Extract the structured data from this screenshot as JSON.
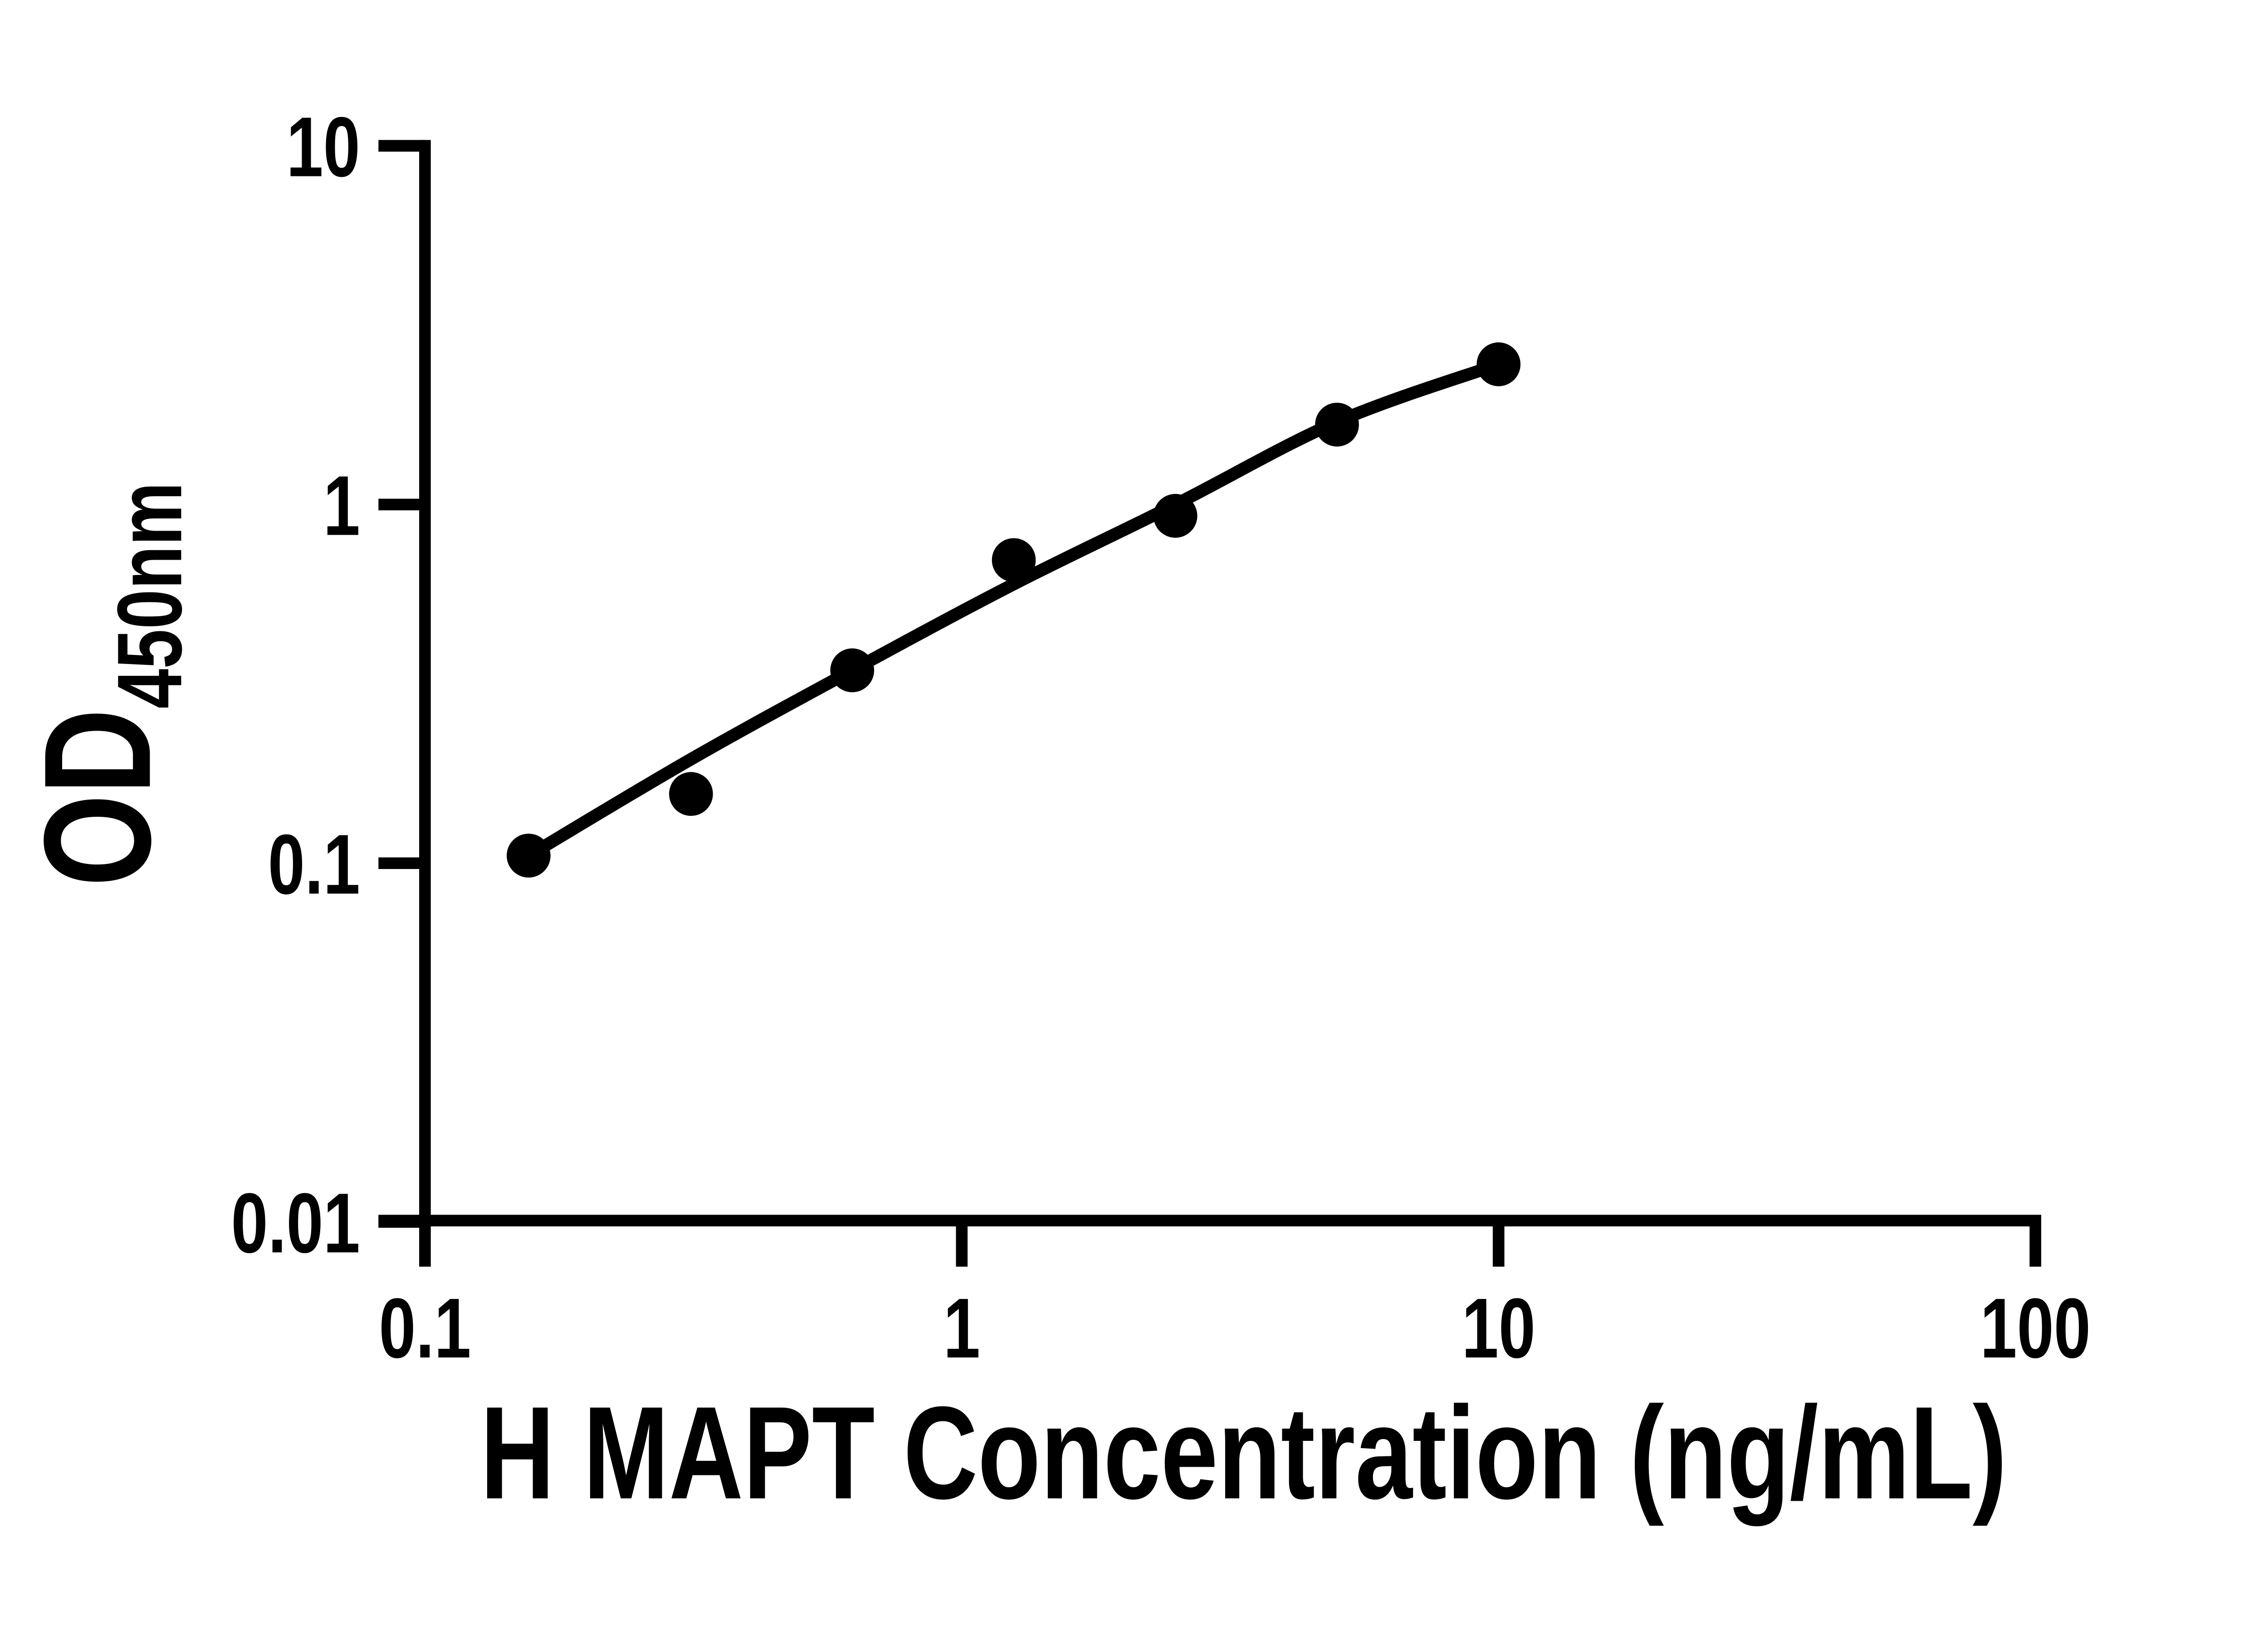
{
  "figure": {
    "background_color": "#ffffff",
    "ink_color": "#000000"
  },
  "chart_data": {
    "type": "scatter",
    "title": "",
    "xlabel": "H MAPT Concentration (ng/mL)",
    "ylabel_main": "OD",
    "ylabel_sub": "450nm",
    "x_scale": "log",
    "y_scale": "log",
    "xlim": [
      0.1,
      100
    ],
    "ylim": [
      0.01,
      10
    ],
    "grid": "off",
    "legend": "none",
    "x_ticks": [
      {
        "value": 0.1,
        "label": "0.1"
      },
      {
        "value": 1,
        "label": "1"
      },
      {
        "value": 10,
        "label": "10"
      },
      {
        "value": 100,
        "label": "100"
      }
    ],
    "y_ticks": [
      {
        "value": 10,
        "label": "10"
      },
      {
        "value": 1,
        "label": "1"
      },
      {
        "value": 0.1,
        "label": "0.1"
      },
      {
        "value": 0.01,
        "label": "0.01"
      }
    ],
    "series": [
      {
        "name": "standard-curve-points",
        "marker": "filled-circle",
        "color": "#000000",
        "points": [
          [
            0.156,
            0.105
          ],
          [
            0.313,
            0.156
          ],
          [
            0.625,
            0.345
          ],
          [
            1.25,
            0.7
          ],
          [
            2.5,
            0.93
          ],
          [
            5,
            1.67
          ],
          [
            10,
            2.46
          ]
        ]
      }
    ],
    "fit_curve": {
      "name": "four-parameter-logistic-fit",
      "color": "#000000",
      "points": [
        [
          0.156,
          0.105
        ],
        [
          0.313,
          0.195
        ],
        [
          0.625,
          0.345
        ],
        [
          1.25,
          0.6
        ],
        [
          2.5,
          1.0
        ],
        [
          5,
          1.7
        ],
        [
          10,
          2.46
        ]
      ]
    }
  }
}
